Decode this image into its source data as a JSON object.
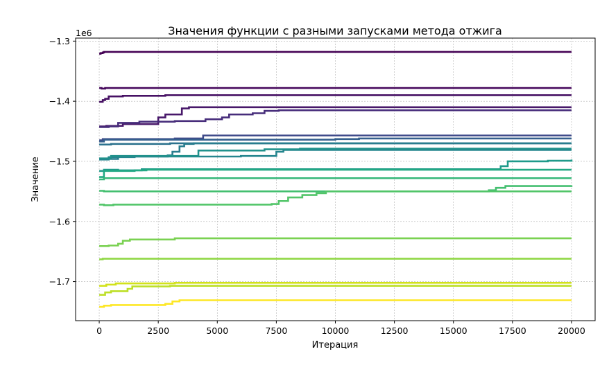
{
  "chart_data": {
    "type": "line",
    "title": "Значения функции с разными запусками метода отжига",
    "xlabel": "Итерация",
    "ylabel": "Значение",
    "offset_label": "1e6",
    "xlim": [
      -1000,
      21000
    ],
    "ylim": [
      -1.765,
      -1.295
    ],
    "x_ticks": [
      0,
      2500,
      5000,
      7500,
      10000,
      12500,
      15000,
      17500,
      20000
    ],
    "x_tick_labels": [
      "0",
      "2500",
      "5000",
      "7500",
      "10000",
      "12500",
      "15000",
      "17500",
      "20000"
    ],
    "y_ticks": [
      -1.3,
      -1.4,
      -1.5,
      -1.6,
      -1.7
    ],
    "y_tick_labels": [
      "−1.3",
      "−1.4",
      "−1.5",
      "−1.6",
      "−1.7"
    ],
    "grid": true,
    "legend": "none",
    "series": [
      {
        "color": "#440154",
        "points": [
          [
            0,
            -1.321
          ],
          [
            60,
            -1.32
          ],
          [
            150,
            -1.319
          ],
          [
            200,
            -1.318
          ],
          [
            20000,
            -1.318
          ]
        ]
      },
      {
        "color": "#46085c",
        "points": [
          [
            0,
            -1.378
          ],
          [
            100,
            -1.379
          ],
          [
            250,
            -1.378
          ],
          [
            20000,
            -1.378
          ]
        ]
      },
      {
        "color": "#471164",
        "points": [
          [
            0,
            -1.401
          ],
          [
            150,
            -1.398
          ],
          [
            250,
            -1.396
          ],
          [
            400,
            -1.392
          ],
          [
            1000,
            -1.391
          ],
          [
            2800,
            -1.39
          ],
          [
            20000,
            -1.39
          ]
        ]
      },
      {
        "color": "#48186a",
        "points": [
          [
            0,
            -1.442
          ],
          [
            300,
            -1.441
          ],
          [
            1000,
            -1.438
          ],
          [
            2500,
            -1.427
          ],
          [
            2800,
            -1.422
          ],
          [
            3500,
            -1.412
          ],
          [
            3800,
            -1.41
          ],
          [
            20000,
            -1.41
          ]
        ]
      },
      {
        "color": "#472d7b",
        "points": [
          [
            0,
            -1.443
          ],
          [
            400,
            -1.442
          ],
          [
            800,
            -1.436
          ],
          [
            1700,
            -1.434
          ],
          [
            3200,
            -1.433
          ],
          [
            4500,
            -1.43
          ],
          [
            5200,
            -1.427
          ],
          [
            5500,
            -1.422
          ],
          [
            6500,
            -1.42
          ],
          [
            7000,
            -1.416
          ],
          [
            7600,
            -1.415
          ],
          [
            20000,
            -1.415
          ]
        ]
      },
      {
        "color": "#3e4989",
        "points": [
          [
            0,
            -1.465
          ],
          [
            150,
            -1.463
          ],
          [
            500,
            -1.463
          ],
          [
            2800,
            -1.463
          ],
          [
            3200,
            -1.462
          ],
          [
            4400,
            -1.457
          ],
          [
            20000,
            -1.457
          ]
        ]
      },
      {
        "color": "#355f8d",
        "points": [
          [
            0,
            -1.467
          ],
          [
            200,
            -1.464
          ],
          [
            8000,
            -1.464
          ],
          [
            10000,
            -1.463
          ],
          [
            11000,
            -1.462
          ],
          [
            20000,
            -1.462
          ]
        ]
      },
      {
        "color": "#2c728e",
        "points": [
          [
            0,
            -1.472
          ],
          [
            500,
            -1.471
          ],
          [
            3000,
            -1.47
          ],
          [
            20000,
            -1.47
          ]
        ]
      },
      {
        "color": "#287d8e",
        "points": [
          [
            0,
            -1.496
          ],
          [
            800,
            -1.492
          ],
          [
            1500,
            -1.492
          ],
          [
            2900,
            -1.49
          ],
          [
            3100,
            -1.484
          ],
          [
            3400,
            -1.475
          ],
          [
            3600,
            -1.471
          ],
          [
            4000,
            -1.47
          ],
          [
            20000,
            -1.47
          ]
        ]
      },
      {
        "color": "#25858e",
        "points": [
          [
            0,
            -1.497
          ],
          [
            400,
            -1.493
          ],
          [
            1500,
            -1.492
          ],
          [
            6000,
            -1.491
          ],
          [
            7500,
            -1.484
          ],
          [
            7800,
            -1.481
          ],
          [
            20000,
            -1.481
          ]
        ]
      },
      {
        "color": "#21918c",
        "points": [
          [
            0,
            -1.495
          ],
          [
            500,
            -1.491
          ],
          [
            4200,
            -1.482
          ],
          [
            7000,
            -1.48
          ],
          [
            8500,
            -1.479
          ],
          [
            20000,
            -1.479
          ]
        ]
      },
      {
        "color": "#1f9a8a",
        "points": [
          [
            0,
            -1.516
          ],
          [
            200,
            -1.514
          ],
          [
            800,
            -1.515
          ],
          [
            1800,
            -1.513
          ],
          [
            16700,
            -1.513
          ],
          [
            17000,
            -1.508
          ],
          [
            17300,
            -1.5
          ],
          [
            19000,
            -1.499
          ],
          [
            20000,
            -1.497
          ]
        ]
      },
      {
        "color": "#22a884",
        "points": [
          [
            0,
            -1.526
          ],
          [
            200,
            -1.516
          ],
          [
            1500,
            -1.515
          ],
          [
            2000,
            -1.514
          ],
          [
            20000,
            -1.514
          ]
        ]
      },
      {
        "color": "#35b779",
        "points": [
          [
            0,
            -1.53
          ],
          [
            200,
            -1.528
          ],
          [
            20000,
            -1.528
          ]
        ]
      },
      {
        "color": "#44bf70",
        "points": [
          [
            0,
            -1.549
          ],
          [
            200,
            -1.55
          ],
          [
            16500,
            -1.548
          ],
          [
            16800,
            -1.544
          ],
          [
            17200,
            -1.541
          ],
          [
            20000,
            -1.54
          ]
        ]
      },
      {
        "color": "#52c569",
        "points": [
          [
            0,
            -1.572
          ],
          [
            200,
            -1.573
          ],
          [
            600,
            -1.572
          ],
          [
            7300,
            -1.571
          ],
          [
            7600,
            -1.566
          ],
          [
            8000,
            -1.56
          ],
          [
            8600,
            -1.556
          ],
          [
            9200,
            -1.553
          ],
          [
            9600,
            -1.55
          ],
          [
            20000,
            -1.55
          ]
        ]
      },
      {
        "color": "#7ad151",
        "points": [
          [
            0,
            -1.641
          ],
          [
            400,
            -1.64
          ],
          [
            800,
            -1.637
          ],
          [
            1000,
            -1.632
          ],
          [
            1300,
            -1.63
          ],
          [
            3200,
            -1.628
          ],
          [
            20000,
            -1.628
          ]
        ]
      },
      {
        "color": "#8fd744",
        "points": [
          [
            0,
            -1.663
          ],
          [
            150,
            -1.662
          ],
          [
            20000,
            -1.662
          ]
        ]
      },
      {
        "color": "#bddf26",
        "points": [
          [
            0,
            -1.722
          ],
          [
            250,
            -1.718
          ],
          [
            500,
            -1.716
          ],
          [
            1200,
            -1.712
          ],
          [
            1400,
            -1.708
          ],
          [
            3000,
            -1.707
          ],
          [
            20000,
            -1.707
          ]
        ]
      },
      {
        "color": "#d2e21b",
        "points": [
          [
            0,
            -1.707
          ],
          [
            300,
            -1.705
          ],
          [
            700,
            -1.703
          ],
          [
            2800,
            -1.703
          ],
          [
            3200,
            -1.702
          ],
          [
            20000,
            -1.702
          ]
        ]
      },
      {
        "color": "#fde725",
        "points": [
          [
            0,
            -1.742
          ],
          [
            200,
            -1.74
          ],
          [
            500,
            -1.739
          ],
          [
            2800,
            -1.737
          ],
          [
            3100,
            -1.733
          ],
          [
            3400,
            -1.731
          ],
          [
            20000,
            -1.731
          ]
        ]
      }
    ]
  }
}
